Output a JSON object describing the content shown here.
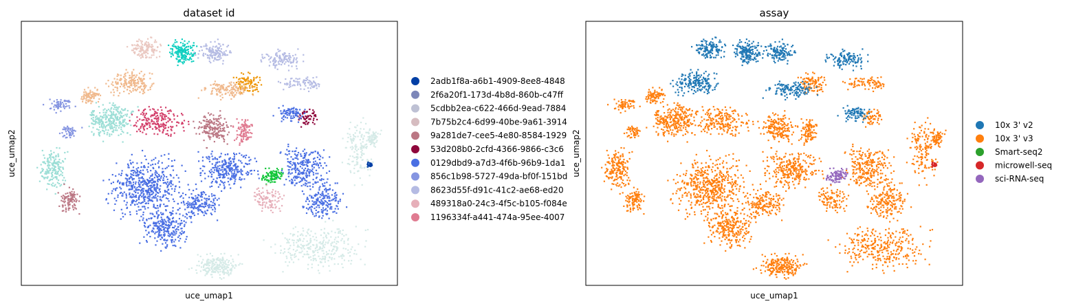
{
  "chart_data": [
    {
      "type": "scatter",
      "title": "dataset id",
      "xlabel": "uce_umap1",
      "ylabel": "uce_umap2",
      "legend_placement": "right",
      "grid": false,
      "legend": [
        {
          "label": "2adb1f8a-a6b1-4909-8ee8-4848",
          "color": "#023fa5"
        },
        {
          "label": "2f6a20f1-173d-4b8d-860b-c47ff",
          "color": "#7d87b9"
        },
        {
          "label": "5cdbb2ea-c622-466d-9ead-7884",
          "color": "#bec1d4"
        },
        {
          "label": "7b75b2c4-6d99-40be-9a61-3914",
          "color": "#d6bcc0"
        },
        {
          "label": "9a281de7-cee5-4e80-8584-1929",
          "color": "#bb7784"
        },
        {
          "label": "53d208b0-2cfd-4366-9866-c3c6",
          "color": "#8e063b"
        },
        {
          "label": "0129dbd9-a7d3-4f6b-96b9-1da1",
          "color": "#4a6fe3"
        },
        {
          "label": "856c1b98-5727-49da-bf0f-151bd",
          "color": "#8595e1"
        },
        {
          "label": "8623d55f-d91c-41c2-ae68-ed20",
          "color": "#b5bbe3"
        },
        {
          "label": "489318a0-24c3-4f5c-b105-f084e",
          "color": "#e6afb9"
        },
        {
          "label": "1196334f-a441-474a-95ee-4007",
          "color": "#e07b91"
        }
      ],
      "other_point_colors": [
        "#9cded6",
        "#d5eae7",
        "#f0b98d",
        "#ef9708",
        "#0fcfc0",
        "#11c638",
        "#d33f6a",
        "#f3e1eb",
        "#8dd593",
        "#c6dec7",
        "#eac8c1"
      ]
    },
    {
      "type": "scatter",
      "title": "assay",
      "xlabel": "uce_umap1",
      "ylabel": "uce_umap2",
      "legend_placement": "right",
      "grid": false,
      "legend": [
        {
          "label": "10x 3' v2",
          "color": "#1f77b4"
        },
        {
          "label": "10x 3' v3",
          "color": "#ff7f0e"
        },
        {
          "label": "Smart-seq2",
          "color": "#2ca02c"
        },
        {
          "label": "microwell-seq",
          "color": "#d62728"
        },
        {
          "label": "sci-RNA-seq",
          "color": "#9467bd"
        }
      ]
    }
  ]
}
